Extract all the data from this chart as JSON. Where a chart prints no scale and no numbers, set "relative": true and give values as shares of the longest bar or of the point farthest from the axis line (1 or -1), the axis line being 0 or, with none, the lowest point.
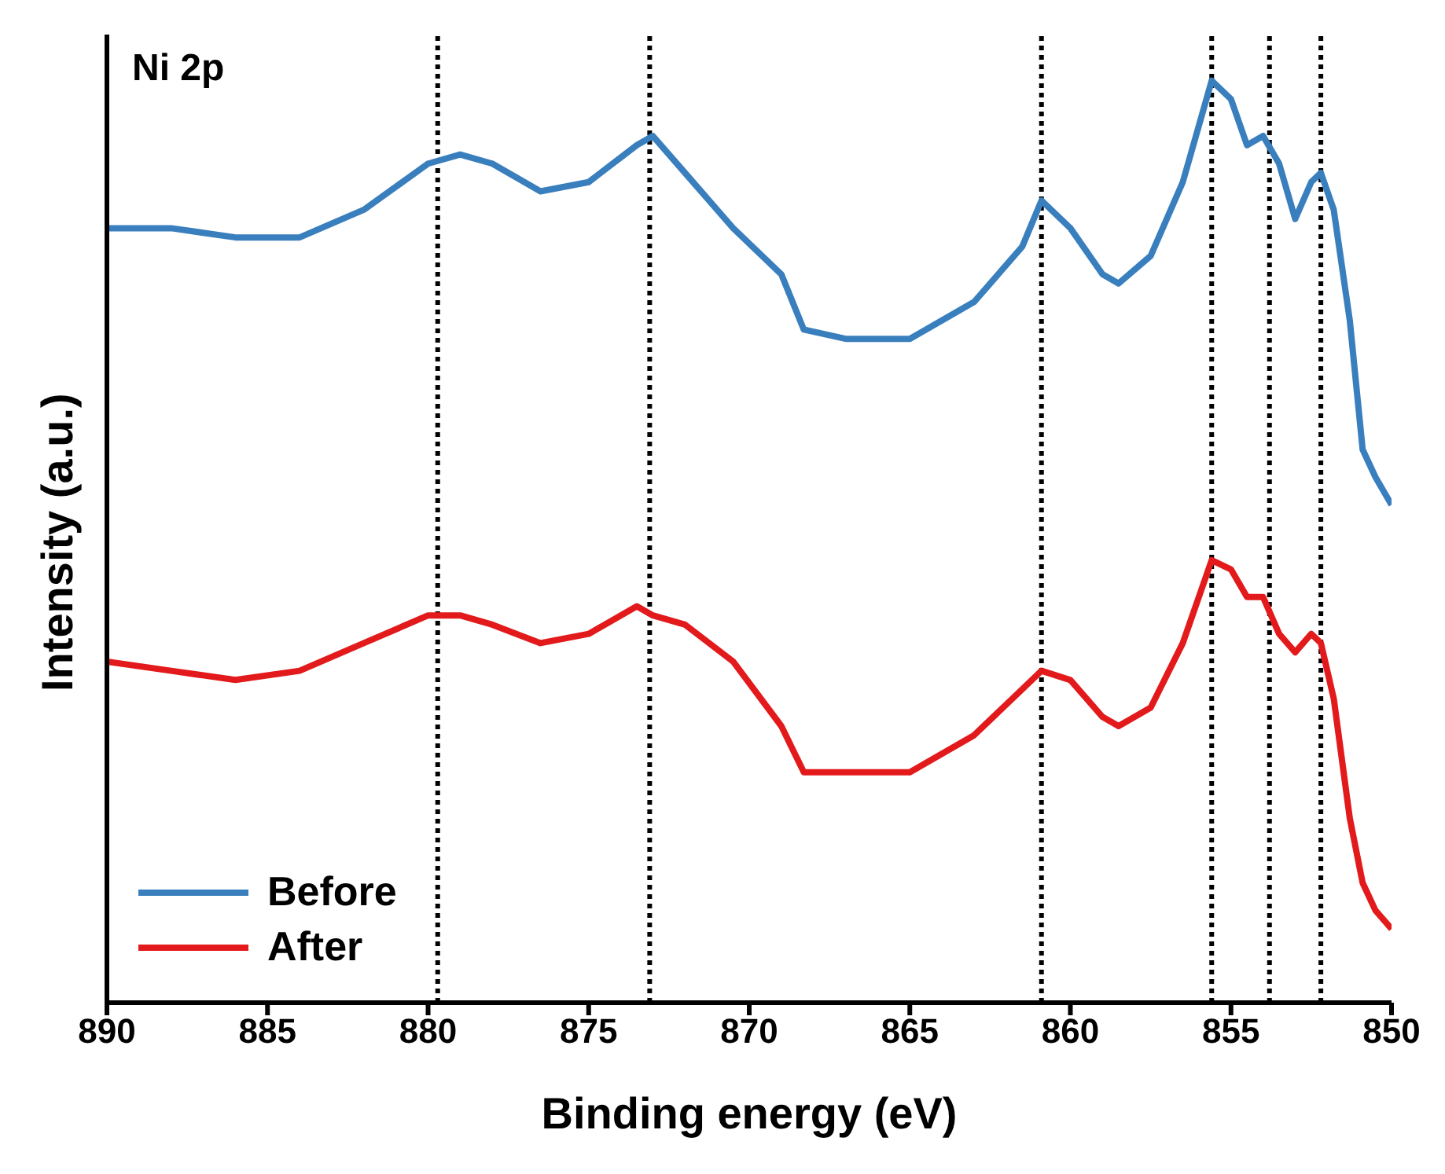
{
  "chart_data": {
    "type": "line",
    "relative": true,
    "xlabel": "Binding energy (eV)",
    "ylabel": "Intensity (a.u.)",
    "annotations": [
      "Ni 2p"
    ],
    "xlim": [
      890,
      850
    ],
    "xticks": [
      890,
      885,
      880,
      875,
      870,
      865,
      860,
      855,
      850
    ],
    "x": [
      890,
      888,
      886,
      884,
      882,
      880,
      879,
      878,
      876.5,
      875,
      873.5,
      873,
      872,
      870.5,
      869,
      868.3,
      867,
      865,
      863,
      861.5,
      860.9,
      860,
      859,
      858.5,
      857.5,
      856.5,
      855.6,
      855,
      854.5,
      854,
      853.5,
      853,
      852.5,
      852.2,
      851.8,
      851.3,
      850.9,
      850.5,
      850
    ],
    "series": [
      {
        "name": "Before",
        "color": "#3a7fbd",
        "values": [
          0.84,
          0.84,
          0.83,
          0.83,
          0.86,
          0.91,
          0.92,
          0.91,
          0.88,
          0.89,
          0.93,
          0.94,
          0.9,
          0.84,
          0.79,
          0.73,
          0.72,
          0.72,
          0.76,
          0.82,
          0.87,
          0.84,
          0.79,
          0.78,
          0.81,
          0.89,
          1,
          0.98,
          0.93,
          0.94,
          0.91,
          0.85,
          0.89,
          0.9,
          0.86,
          0.74,
          0.6,
          0.57,
          0.54
        ]
      },
      {
        "name": "After",
        "color": "#e31a1c",
        "values": [
          0.37,
          0.36,
          0.35,
          0.36,
          0.39,
          0.42,
          0.42,
          0.41,
          0.39,
          0.4,
          0.43,
          0.42,
          0.41,
          0.37,
          0.3,
          0.25,
          0.25,
          0.25,
          0.29,
          0.34,
          0.36,
          0.35,
          0.31,
          0.3,
          0.32,
          0.39,
          0.48,
          0.47,
          0.44,
          0.44,
          0.4,
          0.38,
          0.4,
          0.39,
          0.33,
          0.2,
          0.13,
          0.1,
          0.08
        ]
      }
    ],
    "ref_lines": [
      {
        "axis": "x",
        "value": 879.7,
        "color": "#000000",
        "line_style": "dotted"
      },
      {
        "axis": "x",
        "value": 873.1,
        "color": "#000000",
        "line_style": "dotted"
      },
      {
        "axis": "x",
        "value": 860.9,
        "color": "#000000",
        "line_style": "dotted"
      },
      {
        "axis": "x",
        "value": 855.6,
        "color": "#000000",
        "line_style": "dotted"
      },
      {
        "axis": "x",
        "value": 853.8,
        "color": "#000000",
        "line_style": "dotted"
      },
      {
        "axis": "x",
        "value": 852.2,
        "color": "#000000",
        "line_style": "dotted"
      }
    ],
    "legend": "bottom left",
    "grid": false,
    "line_style": "solid",
    "marker": "none"
  }
}
